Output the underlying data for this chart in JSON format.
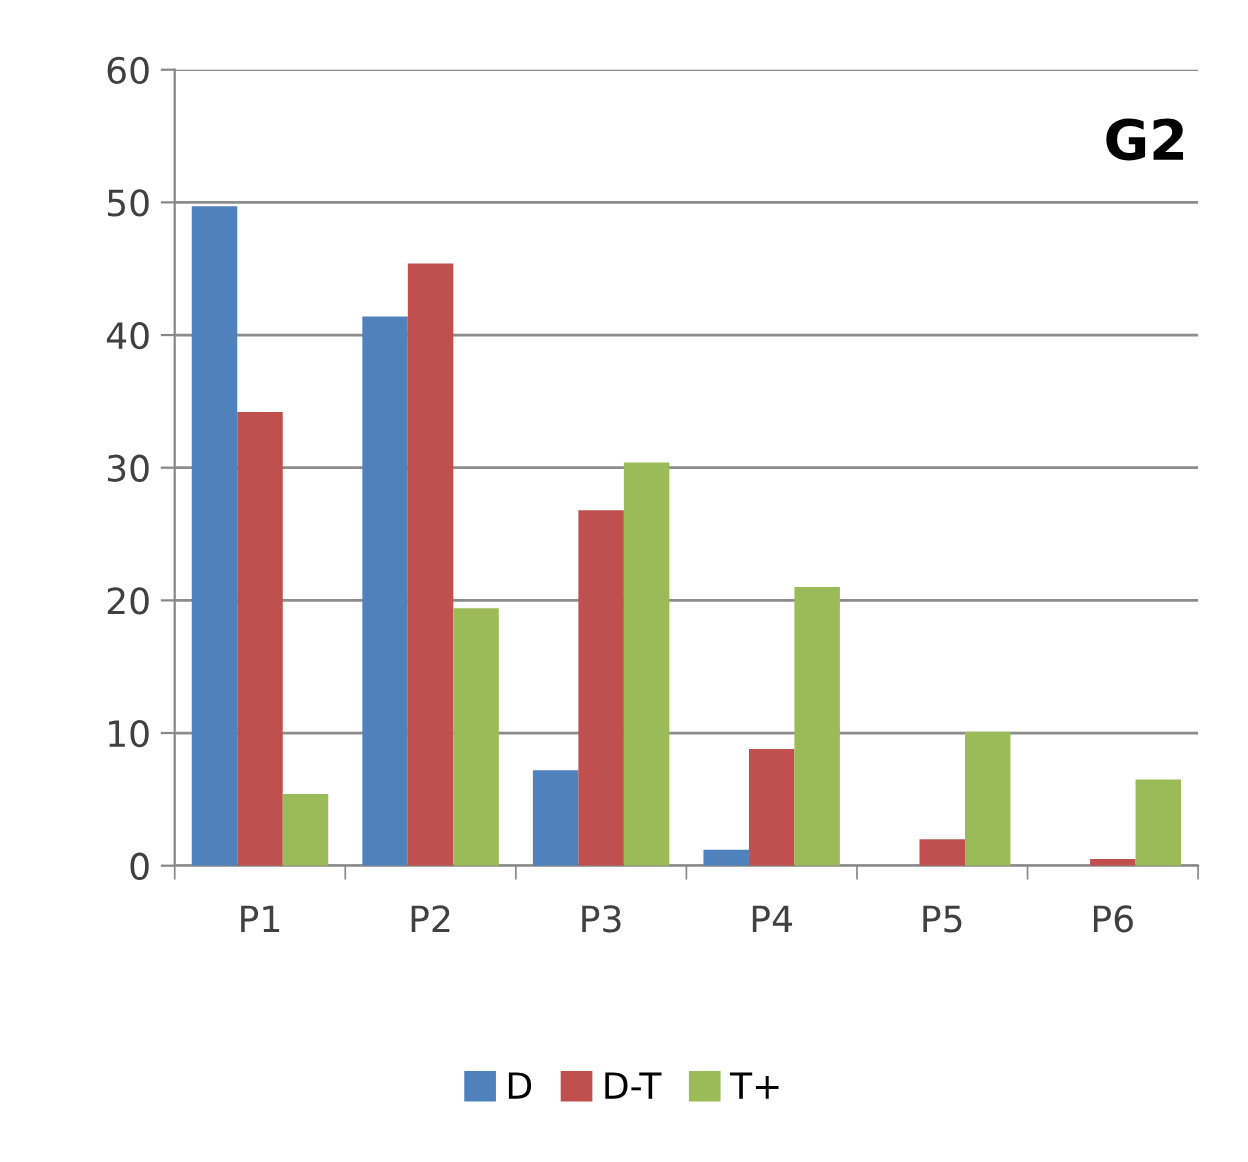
{
  "chart_data": {
    "type": "bar",
    "title": "G2",
    "categories": [
      "P1",
      "P2",
      "P3",
      "P4",
      "P5",
      "P6"
    ],
    "series": [
      {
        "name": "D",
        "color": "#4f81bd",
        "values": [
          49.7,
          41.4,
          7.2,
          1.2,
          0,
          0
        ]
      },
      {
        "name": "D-T",
        "color": "#c0504d",
        "values": [
          34.2,
          45.4,
          26.8,
          8.8,
          2.0,
          0.5
        ]
      },
      {
        "name": "T+",
        "color": "#9bbb59",
        "values": [
          5.4,
          19.4,
          30.4,
          21.0,
          10.1,
          6.5
        ]
      }
    ],
    "ylim": [
      0,
      60
    ],
    "yticks": [
      0,
      10,
      20,
      30,
      40,
      50,
      60
    ],
    "grid": "y",
    "legend": "bottom"
  }
}
